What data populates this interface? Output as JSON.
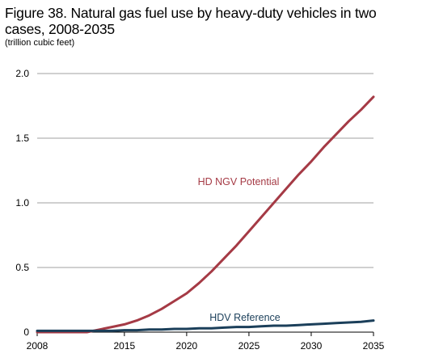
{
  "chart_data": {
    "type": "line",
    "title": "Figure 38. Natural gas fuel use by heavy-duty vehicles in two cases, 2008-2035",
    "subtitle": "(trillion cubic feet)",
    "xlim": [
      2008,
      2035
    ],
    "ylim": [
      0,
      2.0
    ],
    "x_ticks": [
      "2008",
      "2015",
      "2020",
      "2025",
      "2030",
      "2035"
    ],
    "y_ticks": [
      "0",
      "0.5",
      "1.0",
      "1.5",
      "2.0"
    ],
    "grid": "horizontal",
    "x": [
      2008,
      2009,
      2010,
      2011,
      2012,
      2013,
      2014,
      2015,
      2016,
      2017,
      2018,
      2019,
      2020,
      2021,
      2022,
      2023,
      2024,
      2025,
      2026,
      2027,
      2028,
      2029,
      2030,
      2031,
      2032,
      2033,
      2034,
      2035
    ],
    "series": [
      {
        "name": "HD NGV Potential",
        "color": "#A53A45",
        "values": [
          0.0,
          0.0,
          0.0,
          0.0,
          0.0,
          0.02,
          0.04,
          0.06,
          0.09,
          0.13,
          0.18,
          0.24,
          0.3,
          0.38,
          0.47,
          0.57,
          0.67,
          0.78,
          0.89,
          1.0,
          1.11,
          1.22,
          1.32,
          1.43,
          1.53,
          1.63,
          1.72,
          1.82
        ]
      },
      {
        "name": "HDV Reference",
        "color": "#1B3F5A",
        "values": [
          0.01,
          0.01,
          0.01,
          0.01,
          0.01,
          0.01,
          0.01,
          0.015,
          0.015,
          0.02,
          0.02,
          0.025,
          0.025,
          0.03,
          0.03,
          0.035,
          0.04,
          0.04,
          0.045,
          0.05,
          0.05,
          0.055,
          0.06,
          0.065,
          0.07,
          0.075,
          0.08,
          0.09
        ]
      }
    ]
  },
  "colors": {
    "grid": "#A0A0A0",
    "axis": "#000000"
  }
}
